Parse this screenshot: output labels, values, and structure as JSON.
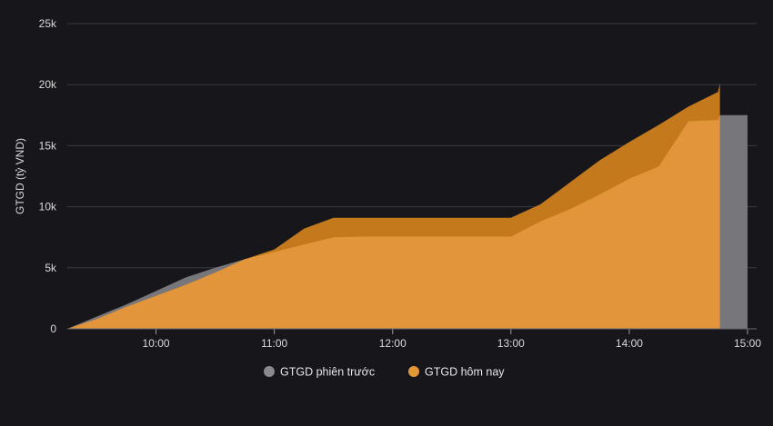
{
  "chart_data": {
    "type": "area",
    "ylabel": "GTGD (tỷ VND)",
    "xlabel": "",
    "title": "",
    "ylim": [
      0,
      25000
    ],
    "xlim": [
      "09:15",
      "15:00"
    ],
    "y_ticks": [
      0,
      5000,
      10000,
      15000,
      20000,
      25000
    ],
    "y_tick_labels": [
      "0",
      "5k",
      "10k",
      "15k",
      "20k",
      "25k"
    ],
    "x_ticks": [
      "10:00",
      "11:00",
      "12:00",
      "13:00",
      "14:00",
      "15:00"
    ],
    "grid": "horizontal",
    "legend_position": "bottom-center",
    "colors": {
      "background": "#17161b",
      "grid": "#3a3a40",
      "previous_fill": "#77777b",
      "today_dark": "#c47a1c",
      "today_light": "#e2953a"
    },
    "series": [
      {
        "name": "GTGD phiên trước",
        "color": "#8a8a8e",
        "x": [
          "09:15",
          "09:30",
          "09:45",
          "10:00",
          "10:15",
          "10:30",
          "10:45",
          "11:00",
          "11:15",
          "11:30",
          "11:45",
          "12:00",
          "12:15",
          "12:30",
          "12:45",
          "13:00",
          "13:15",
          "13:30",
          "13:45",
          "14:00",
          "14:15",
          "14:30",
          "14:45",
          "14:46",
          "15:00"
        ],
        "values": [
          0,
          1000,
          2000,
          3100,
          4200,
          5000,
          5700,
          6300,
          6900,
          7500,
          7550,
          7550,
          7550,
          7550,
          7550,
          7550,
          8800,
          9800,
          11000,
          12300,
          13300,
          17000,
          17100,
          17500,
          17500
        ]
      },
      {
        "name": "GTGD hôm nay",
        "color": "#e39838",
        "x": [
          "09:15",
          "09:30",
          "09:45",
          "10:00",
          "10:15",
          "10:30",
          "10:45",
          "11:00",
          "11:15",
          "11:30",
          "11:45",
          "12:00",
          "12:15",
          "12:30",
          "12:45",
          "13:00",
          "13:15",
          "13:30",
          "13:45",
          "14:00",
          "14:15",
          "14:30",
          "14:45",
          "14:46"
        ],
        "values": [
          0,
          800,
          1800,
          2700,
          3600,
          4600,
          5700,
          6500,
          8200,
          9100,
          9100,
          9100,
          9100,
          9100,
          9100,
          9100,
          10200,
          12000,
          13800,
          15300,
          16700,
          18200,
          19400,
          20100
        ]
      }
    ]
  }
}
